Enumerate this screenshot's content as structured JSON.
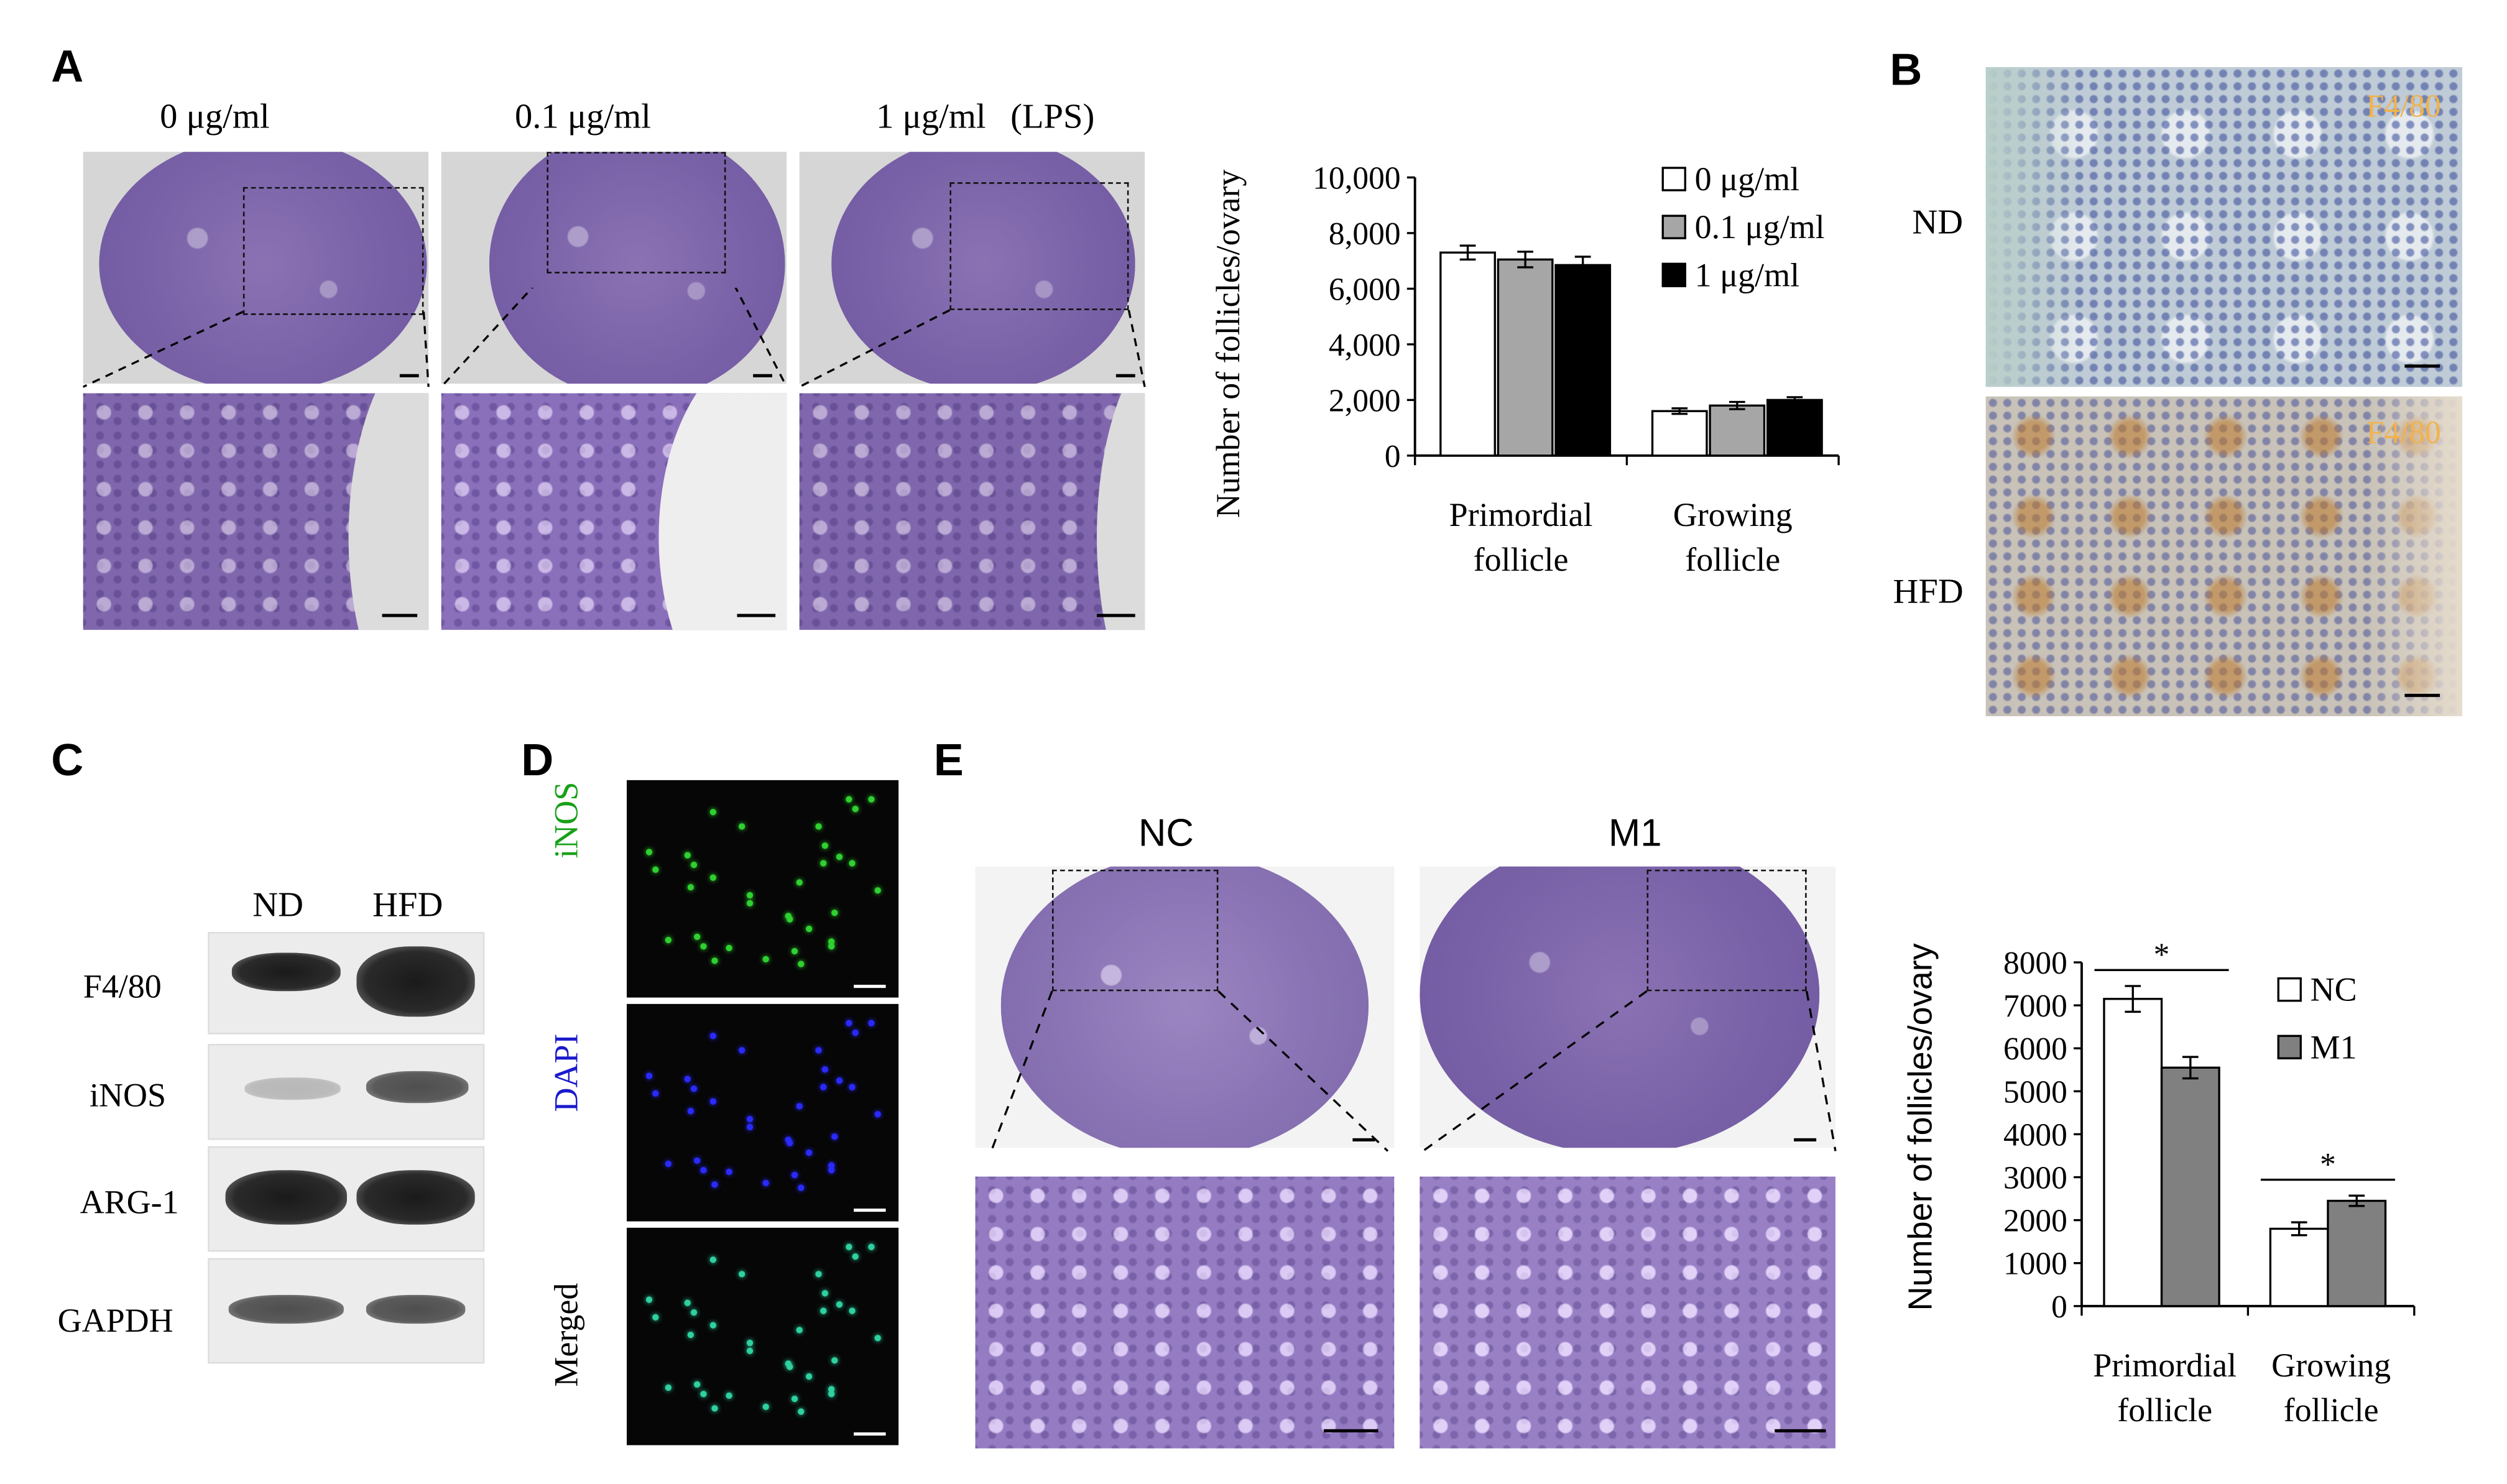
{
  "panels": {
    "A": {
      "label": "A",
      "conditions": [
        "0 μg/ml",
        "0.1 μg/ml",
        "1 μg/ml"
      ],
      "treatment": "(LPS)",
      "chart_data": {
        "type": "bar",
        "categories": [
          "Primordial follicle",
          "Growing follicle"
        ],
        "category_lines": [
          [
            "Primordial",
            "follicle"
          ],
          [
            "Growing",
            "follicle"
          ]
        ],
        "series": [
          {
            "name": "0 μg/ml",
            "values": [
              7300,
              1600
            ],
            "errors": [
              250,
              100
            ],
            "color": "#ffffff"
          },
          {
            "name": "0.1 μg/ml",
            "values": [
              7050,
              1800
            ],
            "errors": [
              280,
              130
            ],
            "color": "#a6a6a6"
          },
          {
            "name": "1 μg/ml",
            "values": [
              6850,
              2000
            ],
            "errors": [
              300,
              100
            ],
            "color": "#000000"
          }
        ],
        "ylabel": "Number of follicles/ovary",
        "ylim": [
          0,
          10000
        ],
        "yticks": [
          "0",
          "2,000",
          "4,000",
          "6,000",
          "8,000",
          "10,000"
        ],
        "legend": "top-right"
      }
    },
    "B": {
      "label": "B",
      "rows": [
        "ND",
        "HFD"
      ],
      "stain": "F4/80"
    },
    "C": {
      "label": "C",
      "columns": [
        "ND",
        "HFD"
      ],
      "rows": [
        "F4/80",
        "iNOS",
        "ARG-1",
        "GAPDH"
      ]
    },
    "D": {
      "label": "D",
      "rows": [
        "iNOS",
        "DAPI",
        "Merged"
      ],
      "colors": {
        "iNOS": "#18a018",
        "DAPI": "#1a1acc",
        "Merged": "#000000"
      }
    },
    "E": {
      "label": "E",
      "columns": [
        "NC",
        "M1"
      ],
      "chart_data": {
        "type": "bar",
        "categories": [
          "Primordial follicle",
          "Growing follicle"
        ],
        "category_lines": [
          [
            "Primordial",
            "follicle"
          ],
          [
            "Growing",
            "follicle"
          ]
        ],
        "series": [
          {
            "name": "NC",
            "values": [
              7150,
              1800
            ],
            "errors": [
              300,
              150
            ],
            "color": "#ffffff"
          },
          {
            "name": "M1",
            "values": [
              5550,
              2450
            ],
            "errors": [
              250,
              120
            ],
            "color": "#808080"
          }
        ],
        "ylabel": "Number of follicles/ovary",
        "ylim": [
          0,
          8000
        ],
        "yticks": [
          "0",
          "1000",
          "2000",
          "3000",
          "4000",
          "5000",
          "6000",
          "7000",
          "8000"
        ],
        "significance": [
          "*",
          "*"
        ],
        "legend": "top-right"
      }
    }
  }
}
